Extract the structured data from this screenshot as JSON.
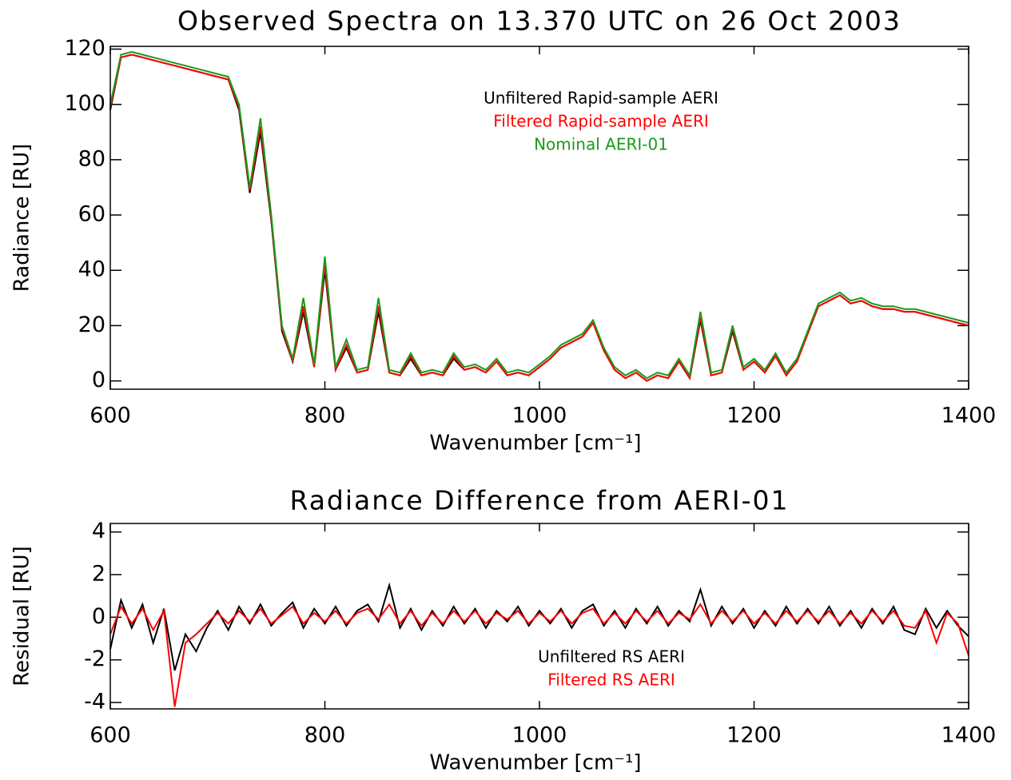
{
  "chart_data": [
    {
      "type": "line",
      "title": "Observed Spectra on 13.370 UTC on 26 Oct 2003",
      "x_label": "Wavenumber [cm⁻¹]",
      "y_label": "Radiance [RU]",
      "x": [
        600,
        610,
        620,
        630,
        640,
        650,
        660,
        670,
        680,
        690,
        700,
        710,
        720,
        730,
        740,
        750,
        760,
        770,
        780,
        790,
        800,
        810,
        820,
        830,
        840,
        850,
        860,
        870,
        880,
        890,
        900,
        910,
        920,
        930,
        940,
        950,
        960,
        970,
        980,
        990,
        1000,
        1010,
        1020,
        1030,
        1040,
        1050,
        1060,
        1070,
        1080,
        1090,
        1100,
        1110,
        1120,
        1130,
        1140,
        1150,
        1160,
        1170,
        1180,
        1190,
        1200,
        1210,
        1220,
        1230,
        1240,
        1250,
        1260,
        1270,
        1280,
        1290,
        1300,
        1310,
        1320,
        1330,
        1340,
        1350,
        1360,
        1370,
        1380,
        1390,
        1400
      ],
      "xlim": [
        600,
        1400
      ],
      "xticks": [
        600,
        800,
        1000,
        1200,
        1400
      ],
      "ylim": [
        -3,
        121
      ],
      "yticks": [
        0,
        20,
        40,
        60,
        80,
        100,
        120
      ],
      "series": [
        {
          "name": "Unfiltered Rapid-sample AERI",
          "color": "#000000",
          "values": [
            98,
            117,
            118,
            117,
            116,
            115,
            114,
            113,
            112,
            111,
            110,
            109,
            98,
            68,
            90,
            58,
            18,
            7,
            25,
            5,
            40,
            4,
            12,
            3,
            4,
            25,
            3,
            2,
            8,
            2,
            3,
            2,
            8,
            4,
            5,
            3,
            7,
            2,
            3,
            2,
            5,
            8,
            12,
            14,
            16,
            21,
            11,
            4,
            1,
            3,
            0,
            2,
            1,
            7,
            1,
            22,
            2,
            3,
            18,
            4,
            7,
            3,
            9,
            2,
            7,
            17,
            27,
            29,
            31,
            28,
            29,
            27,
            26,
            26,
            25,
            25,
            24,
            23,
            22,
            21,
            20
          ]
        },
        {
          "name": "Filtered Rapid-sample AERI",
          "color": "#ff0000",
          "values": [
            99,
            117,
            118,
            117,
            116,
            115,
            114,
            113,
            112,
            111,
            110,
            109,
            99,
            69,
            92,
            59,
            19,
            7,
            27,
            5,
            42,
            4,
            13,
            3,
            4,
            27,
            3,
            2,
            9,
            2,
            3,
            2,
            9,
            4,
            5,
            3,
            7,
            2,
            3,
            2,
            5,
            8,
            12,
            14,
            16,
            21,
            11,
            4,
            1,
            3,
            0,
            2,
            1,
            7,
            1,
            23,
            2,
            3,
            19,
            4,
            7,
            3,
            9,
            2,
            7,
            17,
            27,
            29,
            31,
            28,
            29,
            27,
            26,
            26,
            25,
            25,
            24,
            23,
            22,
            21,
            20
          ]
        },
        {
          "name": "Nominal AERI-01",
          "color": "#1a9a1a",
          "values": [
            100,
            118,
            119,
            118,
            117,
            116,
            115,
            114,
            113,
            112,
            111,
            110,
            100,
            70,
            95,
            60,
            20,
            8,
            30,
            6,
            45,
            5,
            15,
            4,
            5,
            30,
            4,
            3,
            10,
            3,
            4,
            3,
            10,
            5,
            6,
            4,
            8,
            3,
            4,
            3,
            6,
            9,
            13,
            15,
            17,
            22,
            12,
            5,
            2,
            4,
            1,
            3,
            2,
            8,
            2,
            25,
            3,
            4,
            20,
            5,
            8,
            4,
            10,
            3,
            8,
            18,
            28,
            30,
            32,
            29,
            30,
            28,
            27,
            27,
            26,
            26,
            25,
            24,
            23,
            22,
            21
          ]
        }
      ]
    },
    {
      "type": "line",
      "title": "Radiance Difference from AERI-01",
      "x_label": "Wavenumber [cm⁻¹]",
      "y_label": "Residual [RU]",
      "x": [
        600,
        610,
        620,
        630,
        640,
        650,
        660,
        670,
        680,
        690,
        700,
        710,
        720,
        730,
        740,
        750,
        760,
        770,
        780,
        790,
        800,
        810,
        820,
        830,
        840,
        850,
        860,
        870,
        880,
        890,
        900,
        910,
        920,
        930,
        940,
        950,
        960,
        970,
        980,
        990,
        1000,
        1010,
        1020,
        1030,
        1040,
        1050,
        1060,
        1070,
        1080,
        1090,
        1100,
        1110,
        1120,
        1130,
        1140,
        1150,
        1160,
        1170,
        1180,
        1190,
        1200,
        1210,
        1220,
        1230,
        1240,
        1250,
        1260,
        1270,
        1280,
        1290,
        1300,
        1310,
        1320,
        1330,
        1340,
        1350,
        1360,
        1370,
        1380,
        1390,
        1400
      ],
      "xlim": [
        600,
        1400
      ],
      "xticks": [
        600,
        800,
        1000,
        1200,
        1400
      ],
      "ylim": [
        -4.3,
        4.4
      ],
      "yticks": [
        -4,
        -2,
        0,
        2,
        4
      ],
      "series": [
        {
          "name": "Unfiltered RS AERI",
          "color": "#000000",
          "values": [
            -1.5,
            0.8,
            -0.5,
            0.6,
            -1.2,
            0.4,
            -2.5,
            -0.8,
            -1.6,
            -0.5,
            0.3,
            -0.6,
            0.5,
            -0.3,
            0.6,
            -0.4,
            0.2,
            0.7,
            -0.5,
            0.4,
            -0.3,
            0.5,
            -0.4,
            0.3,
            0.6,
            -0.2,
            1.5,
            -0.5,
            0.4,
            -0.6,
            0.3,
            -0.4,
            0.5,
            -0.3,
            0.4,
            -0.5,
            0.3,
            -0.2,
            0.5,
            -0.4,
            0.3,
            -0.3,
            0.4,
            -0.5,
            0.3,
            0.6,
            -0.4,
            0.3,
            -0.5,
            0.4,
            -0.3,
            0.5,
            -0.4,
            0.3,
            -0.2,
            1.3,
            -0.4,
            0.5,
            -0.3,
            0.4,
            -0.5,
            0.3,
            -0.4,
            0.5,
            -0.3,
            0.4,
            -0.3,
            0.5,
            -0.4,
            0.3,
            -0.5,
            0.4,
            -0.3,
            0.5,
            -0.6,
            -0.8,
            0.4,
            -0.5,
            0.3,
            -0.4,
            -0.9
          ]
        },
        {
          "name": "Filtered RS AERI",
          "color": "#ff0000",
          "values": [
            -0.8,
            0.5,
            -0.3,
            0.4,
            -0.6,
            0.3,
            -4.2,
            -1.2,
            -0.8,
            -0.3,
            0.2,
            -0.3,
            0.3,
            -0.2,
            0.4,
            -0.3,
            0.1,
            0.5,
            -0.3,
            0.2,
            -0.2,
            0.3,
            -0.3,
            0.2,
            0.4,
            -0.1,
            0.6,
            -0.3,
            0.3,
            -0.4,
            0.2,
            -0.3,
            0.3,
            -0.2,
            0.3,
            -0.3,
            0.2,
            -0.1,
            0.3,
            -0.3,
            0.2,
            -0.2,
            0.3,
            -0.3,
            0.2,
            0.4,
            -0.3,
            0.2,
            -0.3,
            0.3,
            -0.2,
            0.3,
            -0.3,
            0.2,
            -0.1,
            0.6,
            -0.3,
            0.3,
            -0.2,
            0.3,
            -0.3,
            0.2,
            -0.3,
            0.3,
            -0.2,
            0.3,
            -0.2,
            0.3,
            -0.3,
            0.2,
            -0.3,
            0.3,
            -0.2,
            0.3,
            -0.4,
            -0.5,
            0.3,
            -1.2,
            0.2,
            -0.3,
            -1.8
          ]
        }
      ]
    }
  ]
}
